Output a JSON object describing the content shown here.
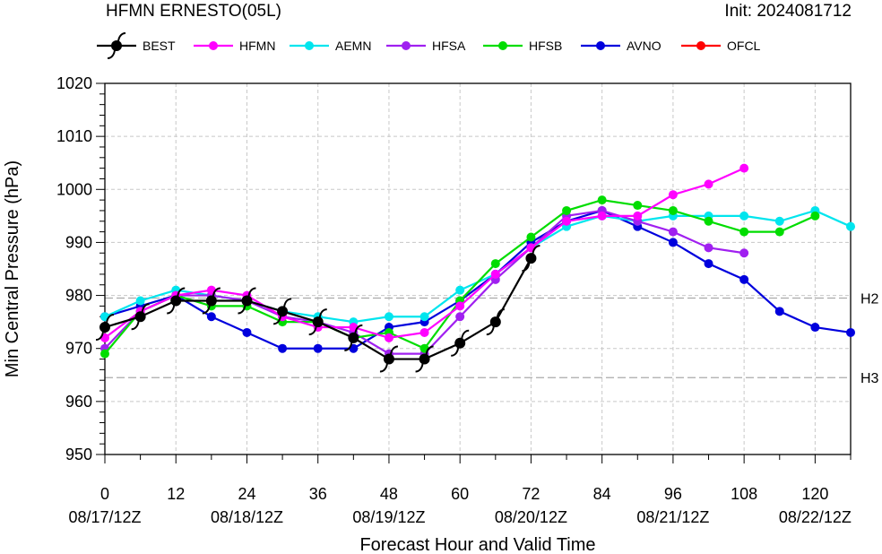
{
  "header": {
    "title": "HFMN ERNESTO(05L)",
    "init": "Init: 2024081712"
  },
  "chart_data": {
    "type": "line",
    "xlabel": "Forecast Hour and Valid Time",
    "ylabel": "Min Central Pressure (hPa)",
    "xlim": [
      0,
      126
    ],
    "ylim": [
      950,
      1020
    ],
    "xticks": [
      0,
      12,
      24,
      36,
      48,
      60,
      72,
      84,
      96,
      108,
      120
    ],
    "xtick_dates": [
      {
        "x": 0,
        "label": "08/17/12Z"
      },
      {
        "x": 24,
        "label": "08/18/12Z"
      },
      {
        "x": 48,
        "label": "08/19/12Z"
      },
      {
        "x": 72,
        "label": "08/20/12Z"
      },
      {
        "x": 96,
        "label": "08/21/12Z"
      },
      {
        "x": 120,
        "label": "08/22/12Z"
      }
    ],
    "yticks": [
      950,
      960,
      970,
      980,
      990,
      1000,
      1010,
      1020
    ],
    "grid": true,
    "legend_position": "top",
    "reference_lines": [
      {
        "label": "H2",
        "value": 979.5
      },
      {
        "label": "H3",
        "value": 964.5
      }
    ],
    "series": [
      {
        "name": "HFMN",
        "color": "#ff00ff",
        "x": [
          0,
          6,
          12,
          18,
          24,
          30,
          36,
          42,
          48,
          54,
          60,
          66,
          72,
          78,
          84,
          90,
          96,
          102,
          108
        ],
        "y": [
          972,
          977,
          980,
          981,
          980,
          976,
          974,
          974,
          972,
          973,
          978,
          984,
          989,
          994,
          995,
          995,
          999,
          1001,
          1004
        ]
      },
      {
        "name": "AEMN",
        "color": "#00e5ee",
        "x": [
          0,
          6,
          12,
          18,
          24,
          30,
          36,
          42,
          48,
          54,
          60,
          66,
          72,
          78,
          84,
          90,
          96,
          102,
          108,
          114,
          120,
          126
        ],
        "y": [
          976,
          979,
          981,
          980,
          979,
          977,
          976,
          975,
          976,
          976,
          981,
          984,
          989,
          993,
          995,
          994,
          995,
          995,
          995,
          994,
          996,
          993
        ]
      },
      {
        "name": "HFSA",
        "color": "#a020f0",
        "x": [
          0,
          6,
          12,
          18,
          24,
          30,
          36,
          42,
          48,
          54,
          60,
          66,
          72,
          78,
          84,
          90,
          96,
          102,
          108
        ],
        "y": [
          970,
          977,
          980,
          980,
          979,
          976,
          975,
          973,
          969,
          969,
          976,
          983,
          989,
          995,
          996,
          994,
          992,
          989,
          988
        ]
      },
      {
        "name": "HFSB",
        "color": "#00dd00",
        "x": [
          0,
          6,
          12,
          18,
          24,
          30,
          36,
          42,
          48,
          54,
          60,
          66,
          72,
          78,
          84,
          90,
          96,
          102,
          108,
          114,
          120
        ],
        "y": [
          969,
          977,
          980,
          978,
          978,
          975,
          975,
          972,
          973,
          970,
          979,
          986,
          991,
          996,
          998,
          997,
          996,
          994,
          992,
          992,
          995
        ]
      },
      {
        "name": "AVNO",
        "color": "#0000dd",
        "x": [
          0,
          6,
          12,
          18,
          24,
          30,
          36,
          42,
          48,
          54,
          60,
          66,
          72,
          78,
          84,
          90,
          96,
          102,
          108,
          114,
          120,
          126
        ],
        "y": [
          976,
          978,
          980,
          976,
          973,
          970,
          970,
          970,
          974,
          975,
          979,
          984,
          990,
          994,
          996,
          993,
          990,
          986,
          983,
          977,
          974,
          973
        ]
      },
      {
        "name": "OFCL",
        "color": "#ff0000",
        "x": [],
        "y": []
      },
      {
        "name": "BEST",
        "color": "#000000",
        "x": [
          0,
          6,
          12,
          18,
          24,
          30,
          36,
          42,
          48,
          54,
          60,
          66,
          72
        ],
        "y": [
          974,
          976,
          979,
          979,
          979,
          977,
          975,
          972,
          968,
          968,
          971,
          975,
          987
        ]
      }
    ],
    "legend_order": [
      "BEST",
      "HFMN",
      "AEMN",
      "HFSA",
      "HFSB",
      "AVNO",
      "OFCL"
    ]
  }
}
